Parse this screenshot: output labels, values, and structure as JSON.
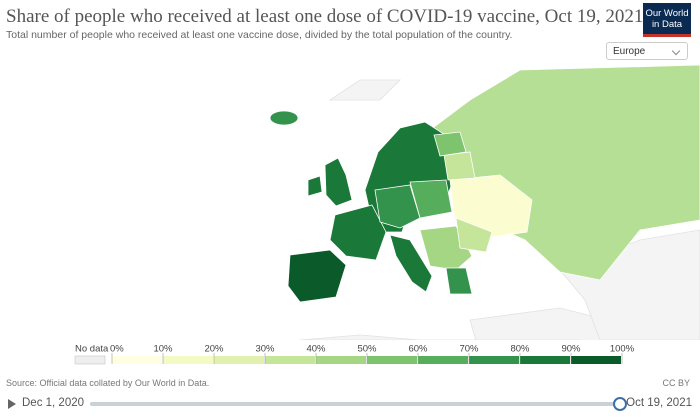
{
  "header": {
    "title": "Share of people who received at least one dose of COVID-19 vaccine, Oct 19, 2021",
    "subtitle": "Total number of people who received at least one vaccine dose, divided by the total population of the country.",
    "logo": [
      "Our World",
      "in Data"
    ],
    "region_selector": "Europe"
  },
  "legend": {
    "no_data": "No data",
    "ticks": [
      "0%",
      "10%",
      "20%",
      "30%",
      "40%",
      "50%",
      "60%",
      "70%",
      "80%",
      "90%",
      "100%"
    ],
    "colors": [
      "#fefee0",
      "#f4fac4",
      "#e2f1b0",
      "#c5e59a",
      "#a5d683",
      "#7ec46e",
      "#56ae5d",
      "#33924b",
      "#1a7838",
      "#0b5a2a"
    ]
  },
  "footer": {
    "source": "Source: Official data collated by Our World in Data.",
    "license": "CC BY"
  },
  "timeline": {
    "start": "Dec 1, 2020",
    "end": "Oct 19, 2021"
  }
}
